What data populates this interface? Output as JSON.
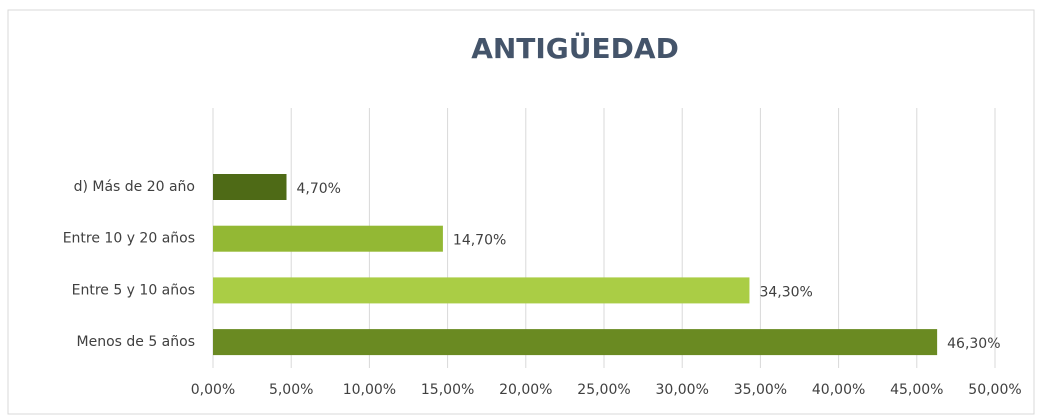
{
  "chart_data": {
    "type": "bar",
    "orientation": "horizontal",
    "title": "ANTIGÜEDAD",
    "categories": [
      "d) Más de 20 año",
      "Entre 10 y 20 años",
      "Entre 5 y 10 años",
      "Menos de 5 años"
    ],
    "values": [
      4.7,
      14.7,
      34.3,
      46.3
    ],
    "value_labels": [
      "4,70%",
      "14,70%",
      "34,30%",
      "46,30%"
    ],
    "colors": [
      "#4e6a16",
      "#93b834",
      "#aacd45",
      "#6a8a22"
    ],
    "xlim": [
      0,
      50
    ],
    "xticks": [
      {
        "value": 0,
        "label": "0,00%"
      },
      {
        "value": 5,
        "label": "5,00%"
      },
      {
        "value": 10,
        "label": "10,00%"
      },
      {
        "value": 15,
        "label": "15,00%"
      },
      {
        "value": 20,
        "label": "20,00%"
      },
      {
        "value": 25,
        "label": "25,00%"
      },
      {
        "value": 30,
        "label": "30,00%"
      },
      {
        "value": 35,
        "label": "35,00%"
      },
      {
        "value": 40,
        "label": "40,00%"
      },
      {
        "value": 45,
        "label": "45,00%"
      },
      {
        "value": 50,
        "label": "50,00%"
      }
    ],
    "grid": true
  }
}
